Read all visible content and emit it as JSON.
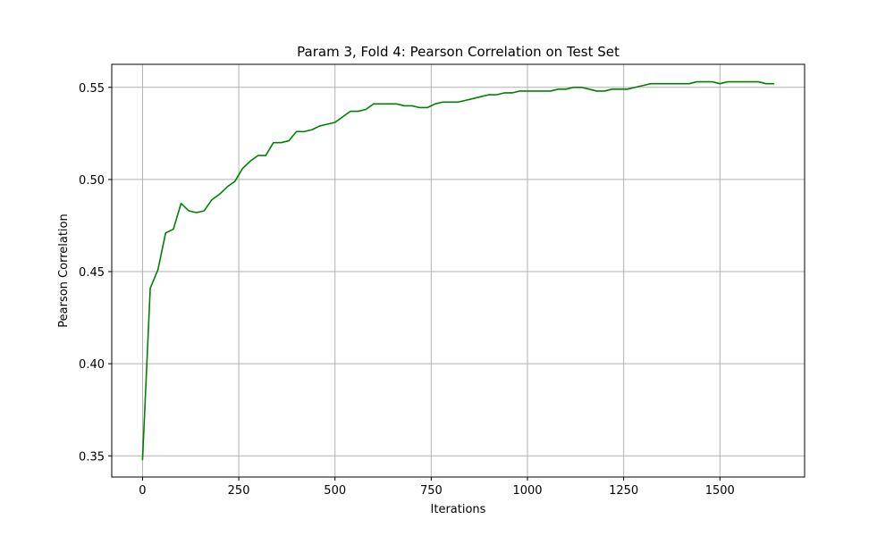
{
  "chart_data": {
    "type": "line",
    "title": "Param 3, Fold 4: Pearson Correlation on Test Set",
    "xlabel": "Iterations",
    "ylabel": "Pearson Correlation",
    "xlim": [
      -80,
      1720
    ],
    "ylim": [
      0.3385,
      0.5625
    ],
    "xticks": [
      0,
      250,
      500,
      750,
      1000,
      1250,
      1500
    ],
    "yticks": [
      0.35,
      0.4,
      0.45,
      0.5,
      0.55
    ],
    "xtick_labels": [
      "0",
      "250",
      "500",
      "750",
      "1000",
      "1250",
      "1500"
    ],
    "ytick_labels": [
      "0.35",
      "0.40",
      "0.45",
      "0.50",
      "0.55"
    ],
    "grid": true,
    "series": [
      {
        "color": "#008000",
        "x": [
          0,
          20,
          40,
          60,
          80,
          100,
          120,
          140,
          160,
          180,
          200,
          220,
          240,
          260,
          280,
          300,
          320,
          340,
          360,
          380,
          400,
          420,
          440,
          460,
          480,
          500,
          520,
          540,
          560,
          580,
          600,
          620,
          640,
          660,
          680,
          700,
          720,
          740,
          760,
          780,
          800,
          820,
          840,
          860,
          880,
          900,
          920,
          940,
          960,
          980,
          1000,
          1020,
          1040,
          1060,
          1080,
          1100,
          1120,
          1140,
          1160,
          1180,
          1200,
          1220,
          1240,
          1260,
          1280,
          1300,
          1320,
          1340,
          1360,
          1380,
          1400,
          1420,
          1440,
          1460,
          1480,
          1500,
          1520,
          1540,
          1560,
          1580,
          1600,
          1620,
          1640
        ],
        "y": [
          0.348,
          0.441,
          0.451,
          0.471,
          0.473,
          0.487,
          0.483,
          0.482,
          0.483,
          0.489,
          0.492,
          0.496,
          0.499,
          0.506,
          0.51,
          0.513,
          0.513,
          0.52,
          0.52,
          0.521,
          0.526,
          0.526,
          0.527,
          0.529,
          0.53,
          0.531,
          0.534,
          0.537,
          0.537,
          0.538,
          0.541,
          0.541,
          0.541,
          0.541,
          0.54,
          0.54,
          0.539,
          0.539,
          0.541,
          0.542,
          0.542,
          0.542,
          0.543,
          0.544,
          0.545,
          0.546,
          0.546,
          0.547,
          0.547,
          0.548,
          0.548,
          0.548,
          0.548,
          0.548,
          0.549,
          0.549,
          0.55,
          0.55,
          0.549,
          0.548,
          0.548,
          0.549,
          0.549,
          0.549,
          0.55,
          0.551,
          0.552,
          0.552,
          0.552,
          0.552,
          0.552,
          0.552,
          0.553,
          0.553,
          0.553,
          0.552,
          0.553,
          0.553,
          0.553,
          0.553,
          0.553,
          0.552,
          0.552
        ]
      }
    ]
  }
}
